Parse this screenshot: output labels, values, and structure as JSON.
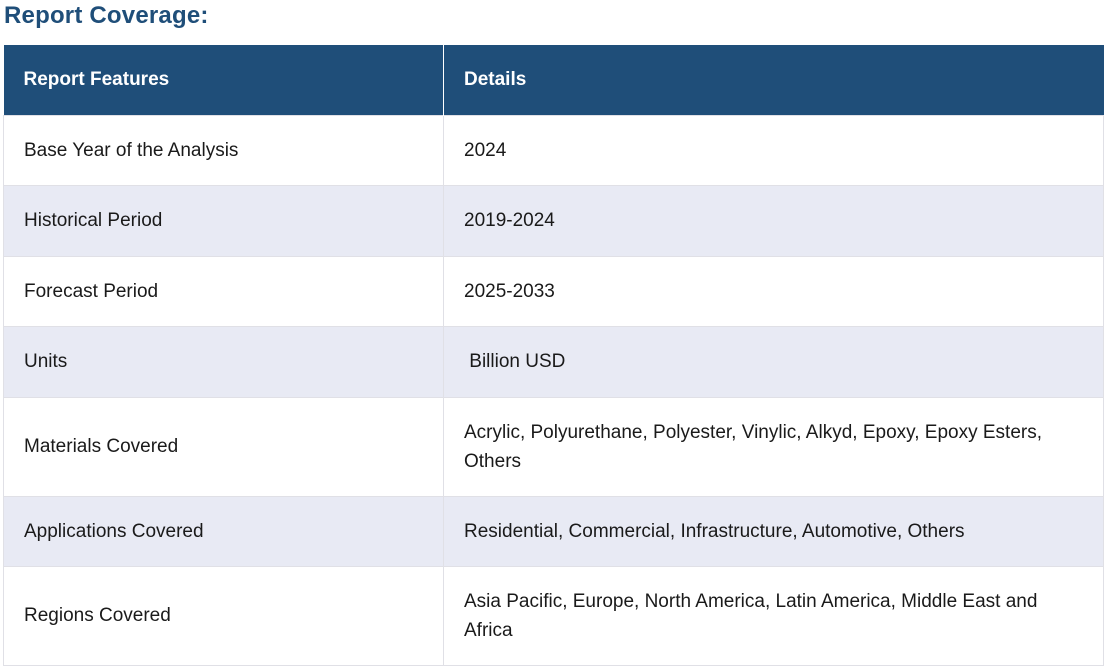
{
  "heading": "Report Coverage:",
  "table": {
    "headers": [
      "Report Features",
      "Details"
    ],
    "rows": [
      {
        "feature": "Base Year of the Analysis",
        "details": "2024"
      },
      {
        "feature": "Historical Period",
        "details": "2019-2024"
      },
      {
        "feature": "Forecast Period",
        "details": "2025-2033"
      },
      {
        "feature": "Units",
        "details": " Billion USD"
      },
      {
        "feature": "Materials Covered",
        "details": "Acrylic, Polyurethane, Polyester, Vinylic, Alkyd, Epoxy, Epoxy Esters, Others"
      },
      {
        "feature": "Applications Covered",
        "details": "Residential, Commercial, Infrastructure, Automotive, Others"
      },
      {
        "feature": "Regions Covered",
        "details": "Asia Pacific, Europe, North America, Latin America, Middle East and Africa"
      }
    ]
  },
  "colors": {
    "header_bg": "#1f4e79",
    "heading_text": "#1f4e79",
    "alt_row_bg": "#e8eaf4"
  }
}
